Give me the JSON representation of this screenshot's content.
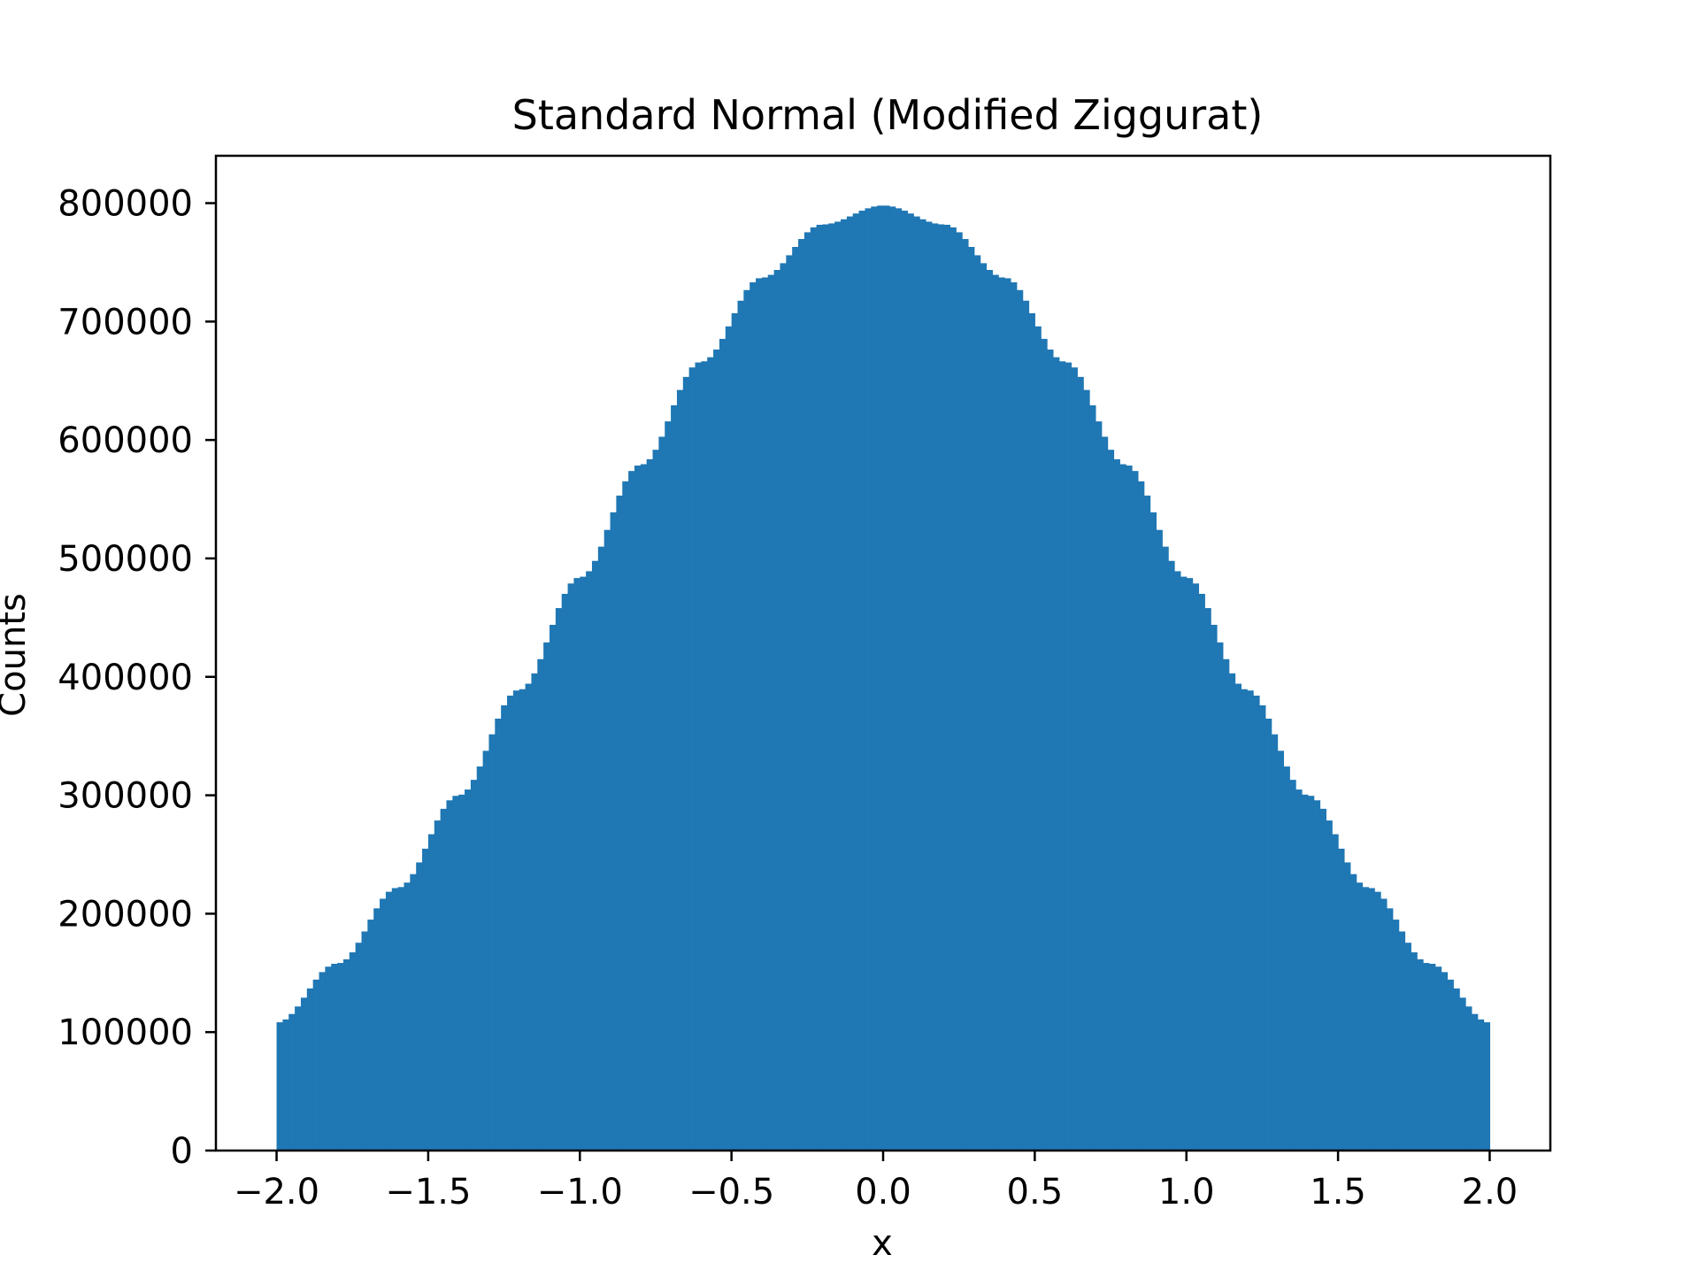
{
  "chart_data": {
    "type": "bar",
    "title": "Standard Normal (Modified Ziggurat)",
    "xlabel": "x",
    "ylabel": "Counts",
    "xlim": [
      -2.2,
      2.2
    ],
    "ylim": [
      0,
      840000
    ],
    "xticks": [
      -2.0,
      -1.5,
      -1.0,
      -0.5,
      0.0,
      0.5,
      1.0,
      1.5,
      2.0
    ],
    "xtick_labels": [
      "−2.0",
      "−1.5",
      "−1.0",
      "−0.5",
      "0.0",
      "0.5",
      "1.0",
      "1.5",
      "2.0"
    ],
    "yticks": [
      0,
      100000,
      200000,
      300000,
      400000,
      500000,
      600000,
      700000,
      800000
    ],
    "ytick_labels": [
      "0",
      "100000",
      "200000",
      "300000",
      "400000",
      "500000",
      "600000",
      "700000",
      "800000"
    ],
    "grid": false,
    "legend": "none",
    "bar_color": "#1f77b4",
    "bins": {
      "x": [
        -2.0,
        -1.8,
        -1.6,
        -1.4,
        -1.2,
        -1.0,
        -0.8,
        -0.6,
        -0.4,
        -0.2,
        0.0,
        0.2,
        0.4,
        0.6,
        0.8,
        1.0,
        1.2,
        1.4,
        1.6,
        1.8,
        2.0
      ],
      "counts": [
        108000,
        158000,
        222000,
        300000,
        389000,
        484000,
        579000,
        666000,
        737000,
        782000,
        798000,
        782000,
        737000,
        666000,
        579000,
        484000,
        389000,
        300000,
        222000,
        158000,
        108000
      ]
    }
  }
}
